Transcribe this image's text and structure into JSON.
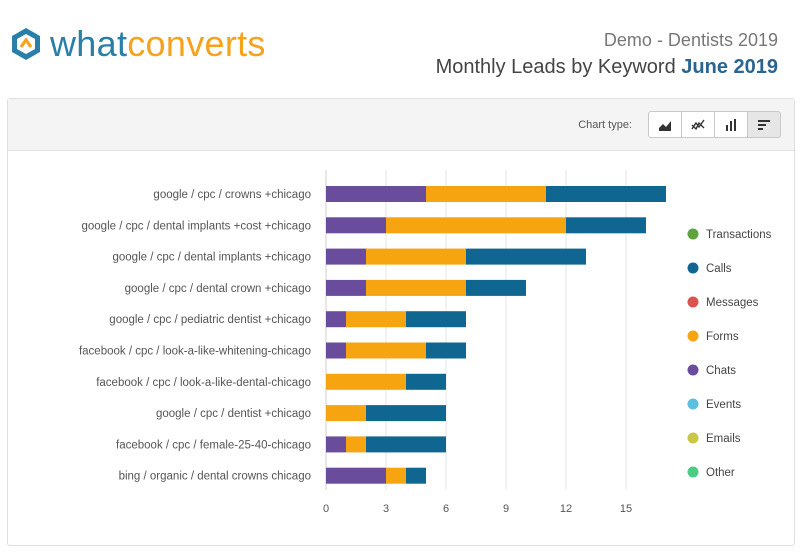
{
  "brand": {
    "logo_what": "what",
    "logo_converts": "converts",
    "logo_icon": "hexagon-chevron-icon",
    "colors": {
      "blue": "#2a7fa8",
      "orange": "#f5a21c"
    }
  },
  "report": {
    "subtitle": "Demo - Dentists 2019",
    "title": "Monthly Leads by Keyword",
    "month": "June 2019"
  },
  "toolbar": {
    "chart_type_label": "Chart type:",
    "buttons": [
      {
        "name": "area",
        "icon": "area-chart-icon",
        "active": false
      },
      {
        "name": "line",
        "icon": "line-chart-icon",
        "active": false
      },
      {
        "name": "column",
        "icon": "column-chart-icon",
        "active": false
      },
      {
        "name": "bar",
        "icon": "bar-chart-icon",
        "active": true
      }
    ]
  },
  "chart_data": {
    "type": "bar",
    "orientation": "horizontal",
    "stacked": true,
    "categories": [
      "google / cpc / crowns +chicago",
      "google / cpc / dental implants +cost +chicago",
      "google / cpc / dental implants +chicago",
      "google / cpc / dental crown +chicago",
      "google / cpc / pediatric dentist +chicago",
      "facebook / cpc / look-a-like-whitening-chicago",
      "facebook / cpc / look-a-like-dental-chicago",
      "google / cpc / dentist +chicago",
      "facebook / cpc / female-25-40-chicago",
      "bing / organic / dental crowns chicago"
    ],
    "series": [
      {
        "name": "Chats",
        "color": "#6a4c9c",
        "values": [
          5,
          3,
          2,
          2,
          1,
          1,
          0,
          0,
          1,
          3
        ]
      },
      {
        "name": "Forms",
        "color": "#f6a40f",
        "values": [
          6,
          9,
          5,
          5,
          3,
          4,
          4,
          2,
          1,
          1
        ]
      },
      {
        "name": "Calls",
        "color": "#0f6690",
        "values": [
          6,
          4,
          6,
          3,
          3,
          2,
          2,
          4,
          4,
          1
        ]
      }
    ],
    "xlim": [
      0,
      17
    ],
    "xticks": [
      0,
      3,
      6,
      9,
      12,
      15
    ],
    "grid": true,
    "legend": {
      "placement": "right",
      "items": [
        {
          "name": "Transactions",
          "color": "#5fa33e"
        },
        {
          "name": "Calls",
          "color": "#0f6690"
        },
        {
          "name": "Messages",
          "color": "#d9534f"
        },
        {
          "name": "Forms",
          "color": "#f6a40f"
        },
        {
          "name": "Chats",
          "color": "#6a4c9c"
        },
        {
          "name": "Events",
          "color": "#5bc0de"
        },
        {
          "name": "Emails",
          "color": "#c8c845"
        },
        {
          "name": "Other",
          "color": "#4ccb85"
        }
      ]
    }
  }
}
